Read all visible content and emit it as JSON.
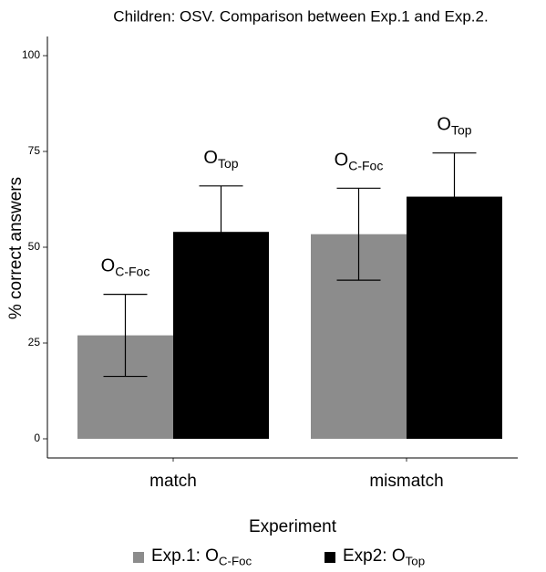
{
  "chart_data": {
    "type": "bar",
    "title": "Children: OSV. Comparison between Exp.1 and Exp.2.",
    "ylabel": "% correct answers",
    "categories": [
      "match",
      "mismatch"
    ],
    "series": [
      {
        "name": "Exp.1: O",
        "name_sub": "C-Foc",
        "color": "#8c8c8c",
        "values": [
          27,
          53.4
        ],
        "errors": [
          10.7,
          12
        ],
        "annotations": [
          {
            "text": "O",
            "sub": "C-Foc"
          },
          {
            "text": "O",
            "sub": "C-Foc"
          }
        ]
      },
      {
        "name": "Exp2:  O",
        "name_sub": "Top",
        "color": "#000000",
        "values": [
          54,
          63.2
        ],
        "errors": [
          12,
          11.4
        ],
        "annotations": [
          {
            "text": "O",
            "sub": "Top"
          },
          {
            "text": "O",
            "sub": "Top"
          }
        ]
      }
    ],
    "legend_title": "Experiment",
    "ylim": [
      -5,
      105
    ],
    "yticks": [
      0,
      25,
      50,
      75,
      100
    ]
  }
}
